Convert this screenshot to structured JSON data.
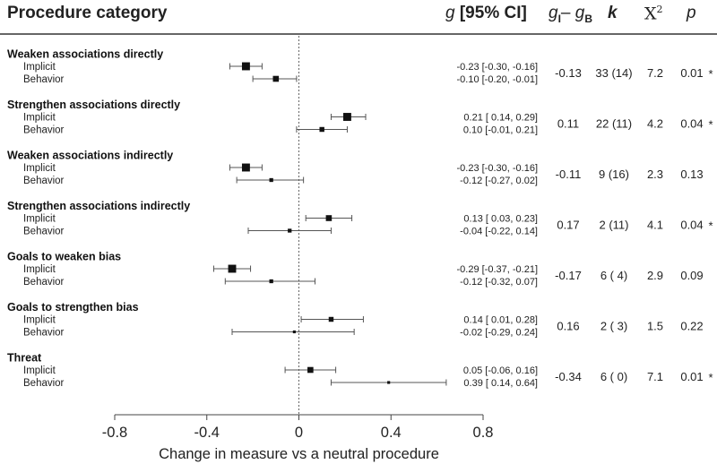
{
  "header": {
    "category": "Procedure category",
    "g_symbol": "g",
    "g_ci": "[95% CI]",
    "gdiff_a": "g",
    "gdiff_a_sub": "I",
    "gdiff_minus": "– ",
    "gdiff_b": "g",
    "gdiff_b_sub": "B",
    "k": "k",
    "chi": "X",
    "chi_sup": "2",
    "p": "p"
  },
  "chart_data": {
    "type": "forest",
    "xlabel": "Change in measure vs a neutral procedure",
    "xlim": [
      -0.8,
      0.8
    ],
    "xticks": [
      "-0.8",
      "-0.4",
      "0",
      "0.4",
      "0.8"
    ],
    "reference_line": 0,
    "groups": [
      {
        "name": "Weaken associations directly",
        "rows": [
          {
            "label": "Implicit",
            "g": -0.23,
            "lo": -0.3,
            "hi": -0.16,
            "ci_text": "-0.23 [-0.30, -0.16]",
            "weight": 3
          },
          {
            "label": "Behavior",
            "g": -0.1,
            "lo": -0.2,
            "hi": -0.01,
            "ci_text": "-0.10 [-0.20, -0.01]",
            "weight": 2
          }
        ],
        "gdiff": "-0.13",
        "k": "33 (14)",
        "chi2": "7.2",
        "p": "0.01",
        "sig": true
      },
      {
        "name": "Strengthen associations directly",
        "rows": [
          {
            "label": "Implicit",
            "g": 0.21,
            "lo": 0.14,
            "hi": 0.29,
            "ci_text": "0.21 [ 0.14,  0.29]",
            "weight": 3
          },
          {
            "label": "Behavior",
            "g": 0.1,
            "lo": -0.01,
            "hi": 0.21,
            "ci_text": "0.10 [-0.01,  0.21]",
            "weight": 1.5
          }
        ],
        "gdiff": "0.11",
        "k": "22 (11)",
        "chi2": "4.2",
        "p": "0.04",
        "sig": true
      },
      {
        "name": "Weaken associations indirectly",
        "rows": [
          {
            "label": "Implicit",
            "g": -0.23,
            "lo": -0.3,
            "hi": -0.16,
            "ci_text": "-0.23 [-0.30, -0.16]",
            "weight": 3
          },
          {
            "label": "Behavior",
            "g": -0.12,
            "lo": -0.27,
            "hi": 0.02,
            "ci_text": "-0.12 [-0.27,  0.02]",
            "weight": 1
          }
        ],
        "gdiff": "-0.11",
        "k": "9 (16)",
        "chi2": "2.3",
        "p": "0.13",
        "sig": false
      },
      {
        "name": "Strengthen associations indirectly",
        "rows": [
          {
            "label": "Implicit",
            "g": 0.13,
            "lo": 0.03,
            "hi": 0.23,
            "ci_text": "0.13 [ 0.03,  0.23]",
            "weight": 2
          },
          {
            "label": "Behavior",
            "g": -0.04,
            "lo": -0.22,
            "hi": 0.14,
            "ci_text": "-0.04 [-0.22,  0.14]",
            "weight": 1
          }
        ],
        "gdiff": "0.17",
        "k": "2 (11)",
        "chi2": "4.1",
        "p": "0.04",
        "sig": true
      },
      {
        "name": "Goals to weaken bias",
        "rows": [
          {
            "label": "Implicit",
            "g": -0.29,
            "lo": -0.37,
            "hi": -0.21,
            "ci_text": "-0.29 [-0.37, -0.21]",
            "weight": 3
          },
          {
            "label": "Behavior",
            "g": -0.12,
            "lo": -0.32,
            "hi": 0.07,
            "ci_text": "-0.12 [-0.32,  0.07]",
            "weight": 1
          }
        ],
        "gdiff": "-0.17",
        "k": "6 ( 4)",
        "chi2": "2.9",
        "p": "0.09",
        "sig": false
      },
      {
        "name": "Goals to strengthen bias",
        "rows": [
          {
            "label": "Implicit",
            "g": 0.14,
            "lo": 0.01,
            "hi": 0.28,
            "ci_text": "0.14 [ 0.01,  0.28]",
            "weight": 1.5
          },
          {
            "label": "Behavior",
            "g": -0.02,
            "lo": -0.29,
            "hi": 0.24,
            "ci_text": "-0.02 [-0.29,  0.24]",
            "weight": 0.5
          }
        ],
        "gdiff": "0.16",
        "k": "2 ( 3)",
        "chi2": "1.5",
        "p": "0.22",
        "sig": false
      },
      {
        "name": "Threat",
        "rows": [
          {
            "label": "Implicit",
            "g": 0.05,
            "lo": -0.06,
            "hi": 0.16,
            "ci_text": "0.05 [-0.06,  0.16]",
            "weight": 2
          },
          {
            "label": "Behavior",
            "g": 0.39,
            "lo": 0.14,
            "hi": 0.64,
            "ci_text": "0.39 [ 0.14,  0.64]",
            "weight": 0.5
          }
        ],
        "gdiff": "-0.34",
        "k": "6 ( 0)",
        "chi2": "7.1",
        "p": "0.01",
        "sig": true
      }
    ],
    "sig_marker": "*"
  }
}
